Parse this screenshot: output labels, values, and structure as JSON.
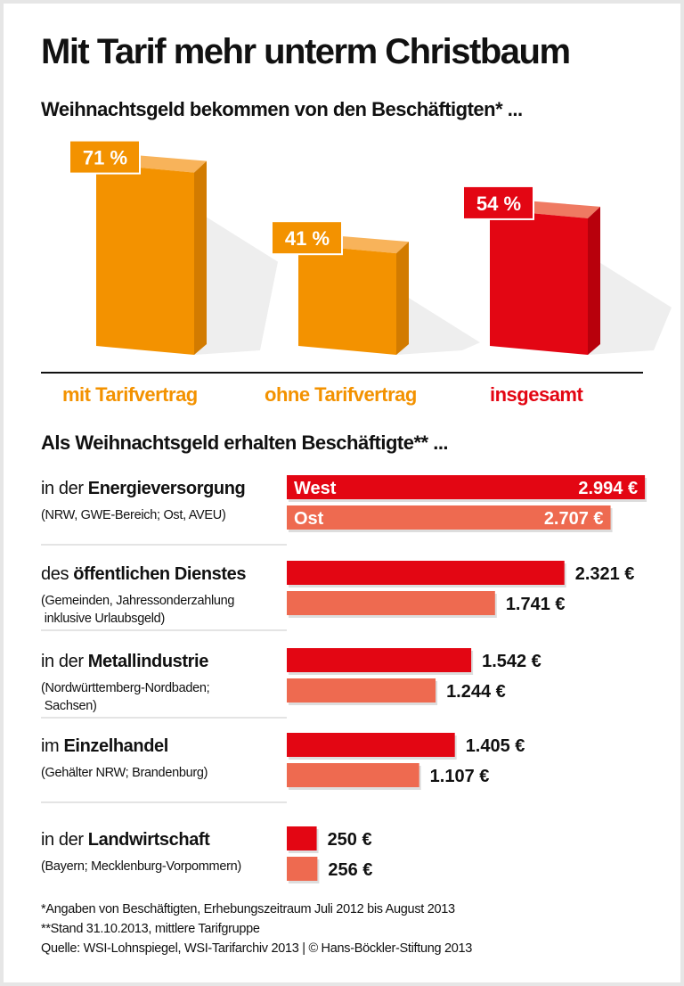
{
  "header": {
    "title": "Mit Tarif mehr unterm Christbaum",
    "subtitle_top": "Weihnachtsgeld bekommen von den Beschäftigten* ...",
    "subtitle_bottom": "Als Weihnachtsgeld erhalten Beschäftigte** ..."
  },
  "colors": {
    "orange": "#f39200",
    "red": "#e30613",
    "light_red": "#ee6a50",
    "text": "#111111"
  },
  "chart_data": [
    {
      "type": "bar",
      "title": "Weihnachtsgeld bekommen von den Beschäftigten* ...",
      "categories": [
        "mit Tarifvertrag",
        "ohne Tarifvertrag",
        "insgesamt"
      ],
      "values": [
        71,
        41,
        54
      ],
      "value_labels": [
        "71 %",
        "41 %",
        "54 %"
      ],
      "unit": "%",
      "colors": [
        "#f39200",
        "#f39200",
        "#e30613"
      ],
      "style": "3d",
      "grid": false
    },
    {
      "type": "bar",
      "orientation": "horizontal",
      "title": "Als Weihnachtsgeld erhalten Beschäftigte** ...",
      "unit": "€",
      "series": [
        {
          "name": "West",
          "color": "#e30613",
          "values": [
            2994,
            2321,
            1542,
            1405,
            250
          ]
        },
        {
          "name": "Ost",
          "color": "#ee6a50",
          "values": [
            2707,
            1741,
            1244,
            1107,
            256
          ]
        }
      ],
      "groups": [
        {
          "prefix": "in der ",
          "label": "Energieversorgung",
          "note": "(NRW, GWE-Bereich; Ost, AVEU)",
          "value_labels": [
            "2.994 €",
            "2.707 €"
          ]
        },
        {
          "prefix": "des ",
          "label": "öffentlichen Dienstes",
          "note": "(Gemeinden, Jahressonderzahlung\n inklusive Urlaubsgeld)",
          "value_labels": [
            "2.321 €",
            "1.741 €"
          ]
        },
        {
          "prefix": "in der ",
          "label": "Metallindustrie",
          "note": "(Nordwürttemberg-Nordbaden;\n Sachsen)",
          "value_labels": [
            "1.542 €",
            "1.244 €"
          ]
        },
        {
          "prefix": "im ",
          "label": "Einzelhandel",
          "note": "(Gehälter NRW; Brandenburg)",
          "value_labels": [
            "1.405 €",
            "1.107 €"
          ]
        },
        {
          "prefix": "in der ",
          "label": "Landwirtschaft",
          "note": "(Bayern; Mecklenburg-Vorpommern)",
          "value_labels": [
            "250 €",
            "256 €"
          ]
        }
      ],
      "grid": false
    }
  ],
  "footnotes": [
    "*Angaben von Beschäftigten, Erhebungszeitraum Juli 2012 bis August 2013",
    "**Stand 31.10.2013, mittlere Tarifgruppe",
    "Quelle: WSI-Lohnspiegel, WSI-Tarifarchiv 2013 | © Hans-Böckler-Stiftung 2013"
  ]
}
